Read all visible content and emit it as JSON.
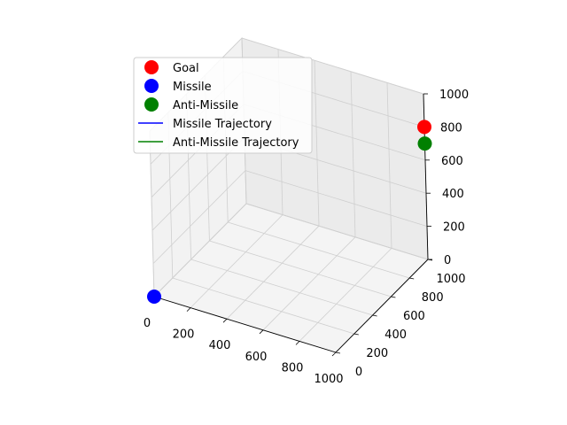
{
  "chart_data": {
    "type": "scatter",
    "projection": "3d",
    "title": "",
    "xlabel": "",
    "ylabel": "",
    "zlabel": "",
    "xlim": [
      0,
      1000
    ],
    "ylim": [
      0,
      1000
    ],
    "zlim": [
      0,
      1000
    ],
    "x_ticks": [
      "0",
      "200",
      "400",
      "600",
      "800",
      "1000"
    ],
    "y_ticks": [
      "0",
      "200",
      "400",
      "600",
      "800",
      "1000"
    ],
    "z_ticks": [
      "0",
      "200",
      "400",
      "600",
      "800",
      "1000"
    ],
    "grid": true,
    "legend_position": "upper-left",
    "points": [
      {
        "name": "Goal",
        "x": 1000,
        "y": 1000,
        "z": 800,
        "color": "#ff0000"
      },
      {
        "name": "Missile",
        "x": 0,
        "y": 0,
        "z": 0,
        "color": "#0000ff"
      },
      {
        "name": "Anti-Missile",
        "x": 1000,
        "y": 1000,
        "z": 700,
        "color": "#008000"
      }
    ],
    "legend": [
      {
        "label": "Goal",
        "kind": "marker",
        "color": "#ff0000"
      },
      {
        "label": "Missile",
        "kind": "marker",
        "color": "#0000ff"
      },
      {
        "label": "Anti-Missile",
        "kind": "marker",
        "color": "#008000"
      },
      {
        "label": "Missile Trajectory",
        "kind": "line",
        "color": "#0000ff"
      },
      {
        "label": "Anti-Missile Trajectory",
        "kind": "line",
        "color": "#008000"
      }
    ]
  }
}
